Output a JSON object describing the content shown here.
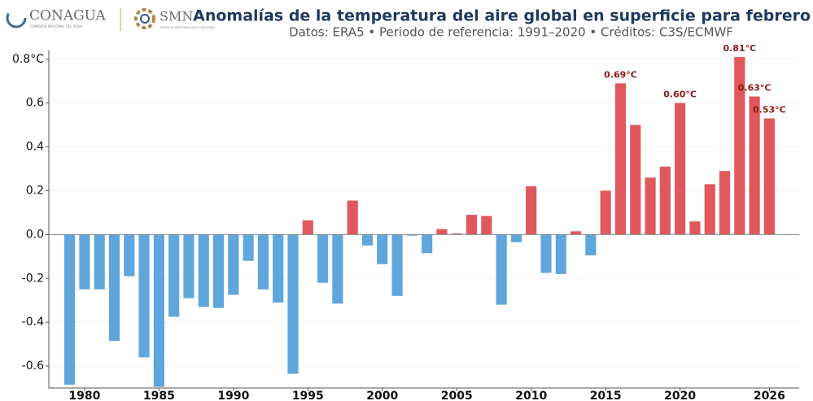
{
  "header": {
    "logo1": "CONAGUA",
    "logo1_sub": "COMISIÓN NACIONAL DEL AGUA",
    "logo2": "SMN",
    "logo2_sub": "SERVICIO METEOROLÓGICO NACIONAL"
  },
  "chart_data": {
    "type": "bar",
    "title": "Anomalías de la temperatura del aire global en superficie para febrero",
    "subtitle": "Datos: ERA5 • Periodo de referencia: 1991–2020 • Créditos: C3S/ECMWF",
    "x": [
      1979,
      1980,
      1981,
      1982,
      1983,
      1984,
      1985,
      1986,
      1987,
      1988,
      1989,
      1990,
      1991,
      1992,
      1993,
      1994,
      1995,
      1996,
      1997,
      1998,
      1999,
      2000,
      2001,
      2002,
      2003,
      2004,
      2005,
      2006,
      2007,
      2008,
      2009,
      2010,
      2011,
      2012,
      2013,
      2014,
      2015,
      2016,
      2017,
      2018,
      2019,
      2020,
      2021,
      2022,
      2023,
      2024,
      2025,
      2026
    ],
    "values": [
      -0.685,
      -0.25,
      -0.25,
      -0.485,
      -0.19,
      -0.56,
      -0.695,
      -0.375,
      -0.29,
      -0.33,
      -0.335,
      -0.275,
      -0.12,
      -0.25,
      -0.31,
      -0.635,
      0.065,
      -0.22,
      -0.315,
      0.155,
      -0.05,
      -0.135,
      -0.28,
      -0.005,
      -0.085,
      0.025,
      0.005,
      0.09,
      0.085,
      -0.32,
      -0.035,
      0.22,
      -0.175,
      -0.18,
      0.015,
      -0.095,
      0.2,
      0.69,
      0.5,
      0.26,
      0.31,
      0.6,
      0.06,
      0.23,
      0.29,
      0.81,
      0.63,
      0.53
    ],
    "value_labels": [
      null,
      null,
      null,
      null,
      null,
      null,
      null,
      null,
      null,
      null,
      null,
      null,
      null,
      null,
      null,
      null,
      null,
      null,
      null,
      null,
      null,
      null,
      null,
      null,
      null,
      null,
      null,
      null,
      null,
      null,
      null,
      null,
      null,
      null,
      null,
      null,
      null,
      "0.69°C",
      null,
      null,
      null,
      "0.60°C",
      null,
      null,
      null,
      "0.81°C",
      "0.63°C",
      "0.53°C"
    ],
    "positive_color": "#e0585c",
    "negative_color": "#5fa6dc",
    "label_color": "#8b1a1a",
    "xlim": [
      1977.6,
      2028
    ],
    "xticks": [
      1980,
      1985,
      1990,
      1995,
      2000,
      2005,
      2010,
      2015,
      2020,
      2026
    ],
    "ylim": [
      -0.7,
      0.84
    ],
    "yticks": [
      -0.6,
      -0.4,
      -0.2,
      {
        "value": 0,
        "label": "0.0"
      },
      0.2,
      0.4,
      0.6,
      {
        "value": 0.8,
        "label": "0.8°C"
      }
    ],
    "grid": true
  }
}
